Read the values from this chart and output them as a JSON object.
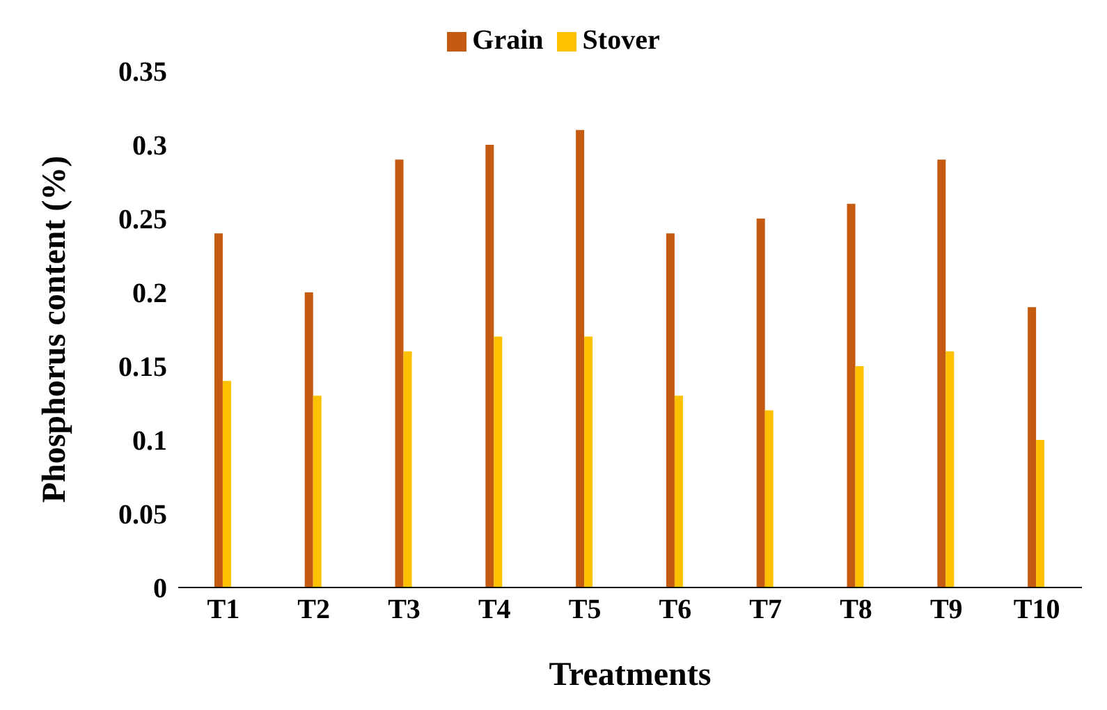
{
  "chart_data": {
    "type": "bar",
    "xlabel": "Treatments",
    "ylabel": "Phosphorus content (%)",
    "categories": [
      "T1",
      "T2",
      "T3",
      "T4",
      "T5",
      "T6",
      "T7",
      "T8",
      "T9",
      "T10"
    ],
    "series": [
      {
        "name": "Grain",
        "color": "#c55a11",
        "values": [
          0.24,
          0.2,
          0.29,
          0.3,
          0.31,
          0.24,
          0.25,
          0.26,
          0.29,
          0.19
        ]
      },
      {
        "name": "Stover",
        "color": "#ffc000",
        "values": [
          0.14,
          0.13,
          0.16,
          0.17,
          0.17,
          0.13,
          0.12,
          0.15,
          0.16,
          0.1
        ]
      }
    ],
    "ylim": [
      0,
      0.35
    ],
    "yticks": [
      0,
      0.05,
      0.1,
      0.15,
      0.2,
      0.25,
      0.3,
      0.35
    ],
    "grid": false,
    "legend": "top"
  }
}
